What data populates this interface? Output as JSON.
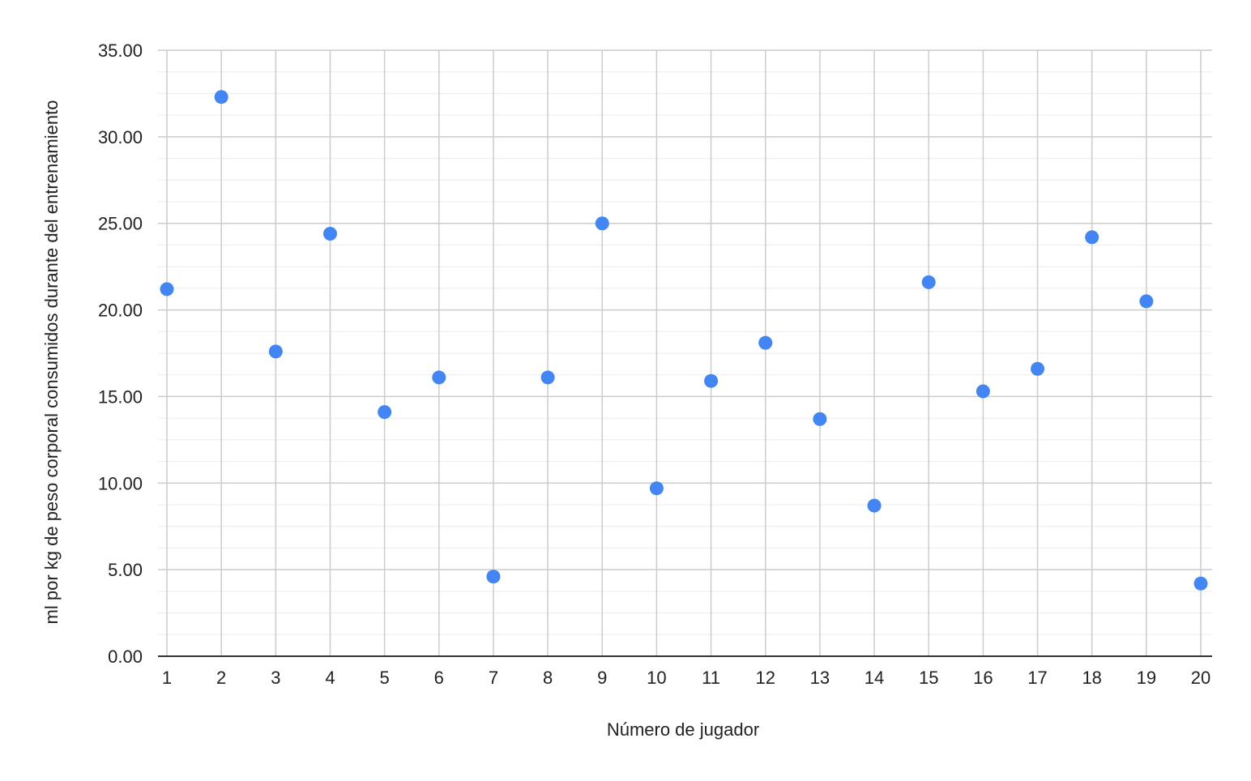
{
  "chart_data": {
    "type": "scatter",
    "title": "",
    "xlabel": "Número de jugador",
    "ylabel": "ml por kg de peso corporal consumidos durante del entrenamiento",
    "x_ticks": [
      "1",
      "2",
      "3",
      "4",
      "5",
      "6",
      "7",
      "8",
      "9",
      "10",
      "11",
      "12",
      "13",
      "14",
      "15",
      "16",
      "17",
      "18",
      "19",
      "20"
    ],
    "y_ticks": [
      "0.00",
      "5.00",
      "10.00",
      "15.00",
      "20.00",
      "25.00",
      "30.00",
      "35.00"
    ],
    "xlim": [
      1,
      20
    ],
    "ylim": [
      0,
      35
    ],
    "grid": true,
    "legend": "none",
    "colors": {
      "point": "#4285f4",
      "grid_major": "#cccccc",
      "grid_minor": "#ebebeb",
      "axis": "#333333"
    },
    "series": [
      {
        "x": [
          1,
          2,
          3,
          4,
          5,
          6,
          7,
          8,
          9,
          10,
          11,
          12,
          13,
          14,
          15,
          16,
          17,
          18,
          19,
          20
        ],
        "values": [
          21.2,
          32.3,
          17.6,
          24.4,
          14.1,
          16.1,
          4.6,
          16.1,
          25.0,
          9.7,
          15.9,
          18.1,
          13.7,
          8.7,
          21.6,
          15.3,
          16.6,
          24.2,
          20.5,
          4.2
        ]
      }
    ]
  }
}
